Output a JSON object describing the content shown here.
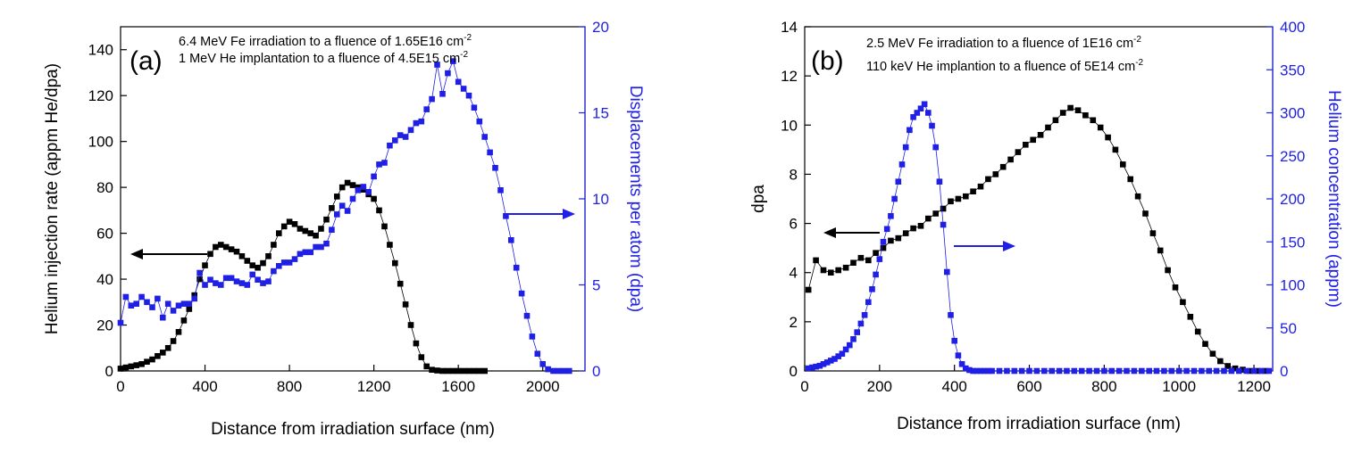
{
  "chart_data": [
    {
      "panel": "a",
      "type": "line",
      "panel_label": "(a)",
      "annotations": [
        {
          "text": "6.4 MeV Fe irradiation to a fluence of 1.65E16  cm",
          "sup": "-2"
        },
        {
          "text": "1 MeV He implantation to a fluence of 4.5E15  cm",
          "sup": "-2"
        }
      ],
      "xlabel": "Distance from irradiation surface (nm)",
      "ylabel_left": "Helium injection rate (appm He/dpa)",
      "ylabel_right": "Displacements per atom (dpa)",
      "xlim": [
        0,
        2200
      ],
      "ylim_left": [
        0,
        150
      ],
      "ylim_right": [
        0,
        20
      ],
      "xticks": [
        0,
        400,
        800,
        1200,
        1600,
        2000
      ],
      "yticks_left": [
        0,
        20,
        40,
        60,
        80,
        100,
        120,
        140
      ],
      "yticks_right": [
        0,
        5,
        10,
        15,
        20
      ],
      "colors": {
        "left": "#000000",
        "right": "#1f1fe6"
      },
      "series": [
        {
          "name": "Helium injection rate",
          "axis": "left",
          "x": [
            0,
            25,
            50,
            75,
            100,
            125,
            150,
            175,
            200,
            225,
            250,
            275,
            300,
            325,
            350,
            375,
            400,
            425,
            450,
            475,
            500,
            525,
            550,
            575,
            600,
            625,
            650,
            675,
            700,
            725,
            750,
            775,
            800,
            825,
            850,
            875,
            900,
            925,
            950,
            975,
            1000,
            1025,
            1050,
            1075,
            1100,
            1125,
            1150,
            1175,
            1200,
            1225,
            1250,
            1275,
            1300,
            1325,
            1350,
            1375,
            1400,
            1425,
            1450,
            1475,
            1500,
            1525,
            1550,
            1575,
            1600,
            1625,
            1650,
            1675,
            1700,
            1725
          ],
          "values": [
            1,
            1.5,
            2,
            2.5,
            3,
            4,
            5,
            6.5,
            8,
            10,
            13,
            17,
            22,
            27,
            33,
            40,
            46,
            51,
            54,
            55,
            54,
            53,
            52,
            50,
            48,
            46,
            45,
            47,
            50,
            55,
            60,
            63,
            65,
            64,
            62,
            61,
            60,
            59,
            62,
            66,
            71,
            76,
            80,
            82,
            81,
            80,
            79,
            77,
            75,
            70,
            63,
            55,
            47,
            38,
            29,
            20,
            12,
            6,
            2,
            0.5,
            0.2,
            0,
            0,
            0,
            0,
            0,
            0,
            0,
            0,
            0
          ]
        },
        {
          "name": "Displacements per atom",
          "axis": "right",
          "x": [
            0,
            25,
            50,
            75,
            100,
            125,
            150,
            175,
            200,
            225,
            250,
            275,
            300,
            325,
            350,
            375,
            400,
            425,
            450,
            475,
            500,
            525,
            550,
            575,
            600,
            625,
            650,
            675,
            700,
            725,
            750,
            775,
            800,
            825,
            850,
            875,
            900,
            925,
            950,
            975,
            1000,
            1025,
            1050,
            1075,
            1100,
            1125,
            1150,
            1175,
            1200,
            1225,
            1250,
            1275,
            1300,
            1325,
            1350,
            1375,
            1400,
            1425,
            1450,
            1475,
            1500,
            1525,
            1550,
            1575,
            1600,
            1625,
            1650,
            1675,
            1700,
            1725,
            1750,
            1775,
            1800,
            1825,
            1850,
            1875,
            1900,
            1925,
            1950,
            1975,
            2000,
            2025,
            2050,
            2075,
            2100,
            2125
          ],
          "values": [
            2.8,
            4.3,
            3.8,
            3.9,
            4.3,
            4.0,
            3.7,
            4.2,
            3.1,
            3.9,
            3.5,
            3.8,
            3.9,
            3.9,
            4.2,
            5.7,
            5.0,
            5.3,
            5.1,
            5.0,
            5.4,
            5.4,
            5.2,
            5.1,
            5.0,
            5.6,
            5.3,
            5.1,
            5.2,
            5.8,
            6.1,
            6.3,
            6.3,
            6.5,
            6.8,
            6.9,
            6.9,
            7.2,
            7.2,
            7.4,
            8.2,
            9.1,
            9.6,
            9.3,
            10.0,
            10.5,
            10.7,
            10.4,
            11.3,
            12.0,
            12.1,
            13.1,
            13.4,
            13.7,
            13.6,
            14.0,
            14.4,
            14.5,
            15.2,
            15.8,
            17.8,
            16.1,
            17.3,
            18.0,
            16.8,
            16.4,
            16.0,
            15.3,
            14.5,
            13.6,
            12.7,
            11.8,
            10.5,
            9.0,
            7.6,
            6.0,
            4.5,
            3.2,
            2.0,
            1.0,
            0.4,
            0.1,
            0,
            0,
            0,
            0
          ]
        }
      ]
    },
    {
      "panel": "b",
      "type": "line",
      "panel_label": "(b)",
      "annotations": [
        {
          "text": "2.5 MeV Fe irradiation to a fluence of 1E16 cm",
          "sup": "-2"
        },
        {
          "text": "110 keV He implantion to a fluence of 5E14 cm",
          "sup": "-2"
        }
      ],
      "xlabel": "Distance from irradiation surface (nm)",
      "ylabel_left": "dpa",
      "ylabel_right": "Helium concentration (appm)",
      "xlim": [
        0,
        1250
      ],
      "ylim_left": [
        0,
        14
      ],
      "ylim_right": [
        0,
        400
      ],
      "xticks": [
        0,
        200,
        400,
        600,
        800,
        1000,
        1200
      ],
      "yticks_left": [
        0,
        2,
        4,
        6,
        8,
        10,
        12,
        14
      ],
      "yticks_right": [
        0,
        50,
        100,
        150,
        200,
        250,
        300,
        350,
        400
      ],
      "colors": {
        "left": "#000000",
        "right": "#1f1fe6"
      },
      "series": [
        {
          "name": "dpa",
          "axis": "left",
          "x": [
            10,
            30,
            50,
            70,
            90,
            110,
            130,
            150,
            170,
            190,
            210,
            230,
            250,
            270,
            290,
            310,
            330,
            350,
            370,
            390,
            410,
            430,
            450,
            470,
            490,
            510,
            530,
            550,
            570,
            590,
            610,
            630,
            650,
            670,
            690,
            710,
            730,
            750,
            770,
            790,
            810,
            830,
            850,
            870,
            890,
            910,
            930,
            950,
            970,
            990,
            1010,
            1030,
            1050,
            1070,
            1090,
            1110,
            1130,
            1150,
            1170,
            1190,
            1210,
            1230
          ],
          "values": [
            3.3,
            4.5,
            4.1,
            4.0,
            4.1,
            4.2,
            4.4,
            4.6,
            4.5,
            4.8,
            5.0,
            5.3,
            5.4,
            5.6,
            5.8,
            5.9,
            6.2,
            6.4,
            6.6,
            6.9,
            7.0,
            7.1,
            7.3,
            7.5,
            7.8,
            8.0,
            8.3,
            8.6,
            8.9,
            9.2,
            9.4,
            9.6,
            9.9,
            10.2,
            10.5,
            10.7,
            10.6,
            10.4,
            10.2,
            9.9,
            9.5,
            9.0,
            8.4,
            7.8,
            7.1,
            6.4,
            5.6,
            4.9,
            4.1,
            3.4,
            2.8,
            2.2,
            1.6,
            1.1,
            0.7,
            0.4,
            0.2,
            0.1,
            0.05,
            0,
            0,
            0
          ]
        },
        {
          "name": "Helium concentration",
          "axis": "right",
          "x": [
            10,
            20,
            30,
            40,
            50,
            60,
            70,
            80,
            90,
            100,
            110,
            120,
            130,
            140,
            150,
            160,
            170,
            180,
            190,
            200,
            210,
            220,
            230,
            240,
            250,
            260,
            270,
            280,
            290,
            300,
            310,
            320,
            330,
            340,
            350,
            360,
            370,
            380,
            390,
            400,
            410,
            420,
            430,
            440,
            450,
            460,
            470,
            480,
            490,
            500,
            520,
            540,
            560,
            580,
            600,
            620,
            640,
            660,
            680,
            700,
            720,
            740,
            760,
            780,
            800,
            820,
            840,
            860,
            880,
            900,
            920,
            940,
            960,
            980,
            1000,
            1020,
            1040,
            1060,
            1080,
            1100,
            1120,
            1140,
            1160,
            1180,
            1200,
            1220,
            1240
          ],
          "values": [
            3,
            4,
            5,
            6,
            8,
            10,
            12,
            14,
            17,
            20,
            25,
            30,
            37,
            45,
            55,
            65,
            80,
            95,
            112,
            130,
            150,
            165,
            180,
            200,
            220,
            240,
            260,
            280,
            295,
            300,
            305,
            310,
            300,
            285,
            260,
            220,
            170,
            115,
            65,
            35,
            18,
            8,
            3,
            1,
            0,
            0,
            0,
            0,
            0,
            0,
            0,
            0,
            0,
            0,
            0,
            0,
            0,
            0,
            0,
            0,
            0,
            0,
            0,
            0,
            0,
            0,
            0,
            0,
            0,
            0,
            0,
            0,
            0,
            0,
            0,
            0,
            0,
            0,
            0,
            0,
            0,
            0,
            0,
            0,
            0,
            0,
            0
          ]
        }
      ]
    }
  ]
}
